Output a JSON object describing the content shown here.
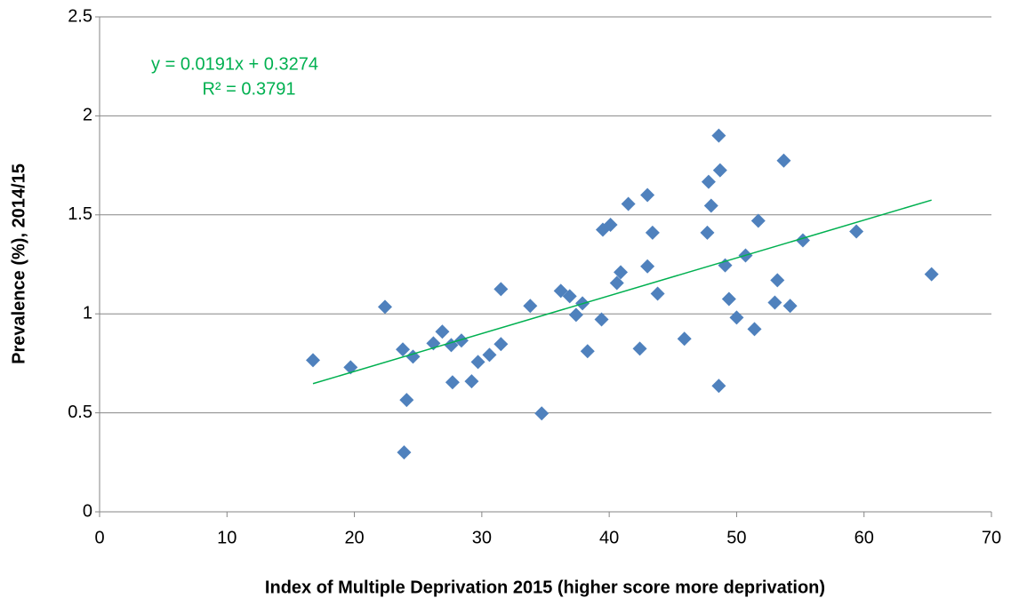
{
  "chart_data": {
    "type": "scatter",
    "x_label": "Index of Multiple Deprivation 2015 (higher score more deprivation)",
    "y_label": "Prevalence (%), 2014/15",
    "series": [
      {
        "color": "#4f81bd",
        "x": [
          16.75,
          19.7,
          22.4,
          23.8,
          24.1,
          23.9,
          24.6,
          26.2,
          26.9,
          27.6,
          27.7,
          28.4,
          29.2,
          29.7,
          30.6,
          31.5,
          31.5,
          33.8,
          34.7,
          36.2,
          36.9,
          37.4,
          37.9,
          38.3,
          39.5,
          39.4,
          40.1,
          40.6,
          40.9,
          41.5,
          42.4,
          43.0,
          43.0,
          43.4,
          43.8,
          45.9,
          47.7,
          47.8,
          48.0,
          48.6,
          48.6,
          48.7,
          49.1,
          49.4,
          50.0,
          50.7,
          51.4,
          51.7,
          53.2,
          53.0,
          53.7,
          54.2,
          55.2,
          59.4,
          65.3
        ],
        "values": [
          0.766,
          0.73,
          1.035,
          0.82,
          0.565,
          0.3,
          0.784,
          0.851,
          0.91,
          0.842,
          0.654,
          0.865,
          0.659,
          0.757,
          0.793,
          0.847,
          1.125,
          1.04,
          0.497,
          1.116,
          1.089,
          0.995,
          1.053,
          0.811,
          1.425,
          0.972,
          1.45,
          1.156,
          1.21,
          1.555,
          0.824,
          1.6,
          1.24,
          1.41,
          1.102,
          0.874,
          1.41,
          1.667,
          1.546,
          1.9,
          0.636,
          1.725,
          1.245,
          1.075,
          0.981,
          1.295,
          0.923,
          1.47,
          1.17,
          1.057,
          1.774,
          1.04,
          1.371,
          1.416,
          1.2
        ]
      }
    ],
    "trendline": {
      "color": "#00b050",
      "slope": 0.0191,
      "intercept": 0.3274,
      "equation": "y = 0.0191x + 0.3274",
      "r2": "R² = 0.3791"
    },
    "xlim": [
      0,
      70
    ],
    "xticks": [
      0,
      10,
      20,
      30,
      40,
      50,
      60,
      70
    ],
    "ylim": [
      0,
      2.5
    ],
    "yticks": [
      0,
      0.5,
      1,
      1.5,
      2,
      2.5
    ],
    "grid": true
  }
}
